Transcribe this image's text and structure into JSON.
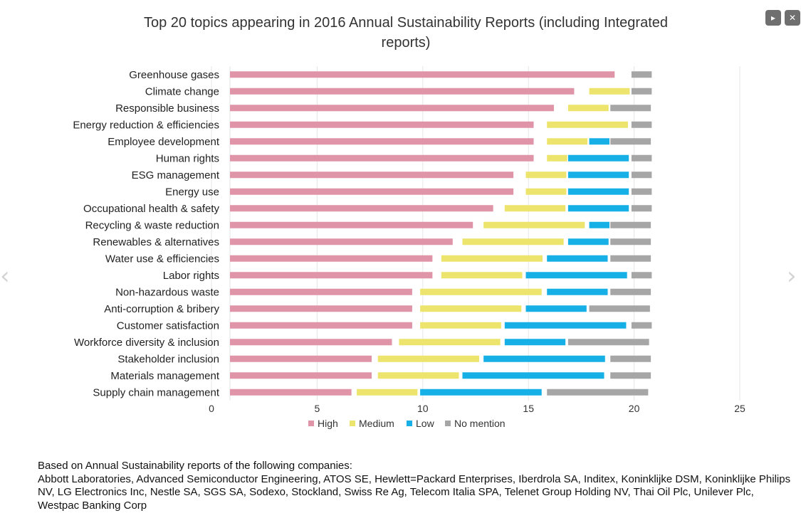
{
  "controls": {
    "play_symbol": "▸",
    "close_symbol": "✕"
  },
  "nav": {
    "prev_symbol": "‹",
    "next_symbol": "›"
  },
  "chart_data": {
    "type": "bar",
    "orientation": "horizontal",
    "stacked": true,
    "title": "Top 20 topics appearing in 2016 Annual Sustainability Reports (including Integrated reports)",
    "xlabel": "",
    "ylabel": "",
    "xlim": [
      0,
      25
    ],
    "xticks": [
      0,
      5,
      10,
      15,
      20,
      25
    ],
    "grid": true,
    "legend_position": "bottom",
    "categories": [
      "Greenhouse gases",
      "Climate change",
      "Responsible business",
      "Energy reduction & efficiencies",
      "Employee development",
      "Human rights",
      "ESG management",
      "Energy use",
      "Occupational health & safety",
      "Recycling & waste reduction",
      "Renewables & alternatives",
      "Water use & efficiencies",
      "Labor rights",
      "Non-hazardous waste",
      "Anti-corruption & bribery",
      "Customer satisfaction",
      "Workforce diversity & inclusion",
      "Stakeholder inclusion",
      "Materials management",
      "Supply chain management"
    ],
    "series": [
      {
        "name": "High",
        "color": "#e094a8",
        "values": [
          19,
          17,
          16,
          15,
          15,
          15,
          14,
          14,
          13,
          12,
          11,
          10,
          10,
          9,
          9,
          9,
          8,
          7,
          7,
          6
        ]
      },
      {
        "name": "Medium",
        "color": "#ece46c",
        "values": [
          0,
          2,
          2,
          4,
          2,
          1,
          2,
          2,
          3,
          5,
          5,
          5,
          4,
          6,
          5,
          4,
          5,
          5,
          4,
          3
        ]
      },
      {
        "name": "Low",
        "color": "#16b0e6",
        "values": [
          0,
          0,
          0,
          0,
          1,
          3,
          3,
          3,
          3,
          1,
          2,
          3,
          5,
          3,
          3,
          6,
          3,
          6,
          7,
          6
        ]
      },
      {
        "name": "No mention",
        "color": "#a6a6a6",
        "values": [
          1,
          1,
          2,
          1,
          2,
          1,
          1,
          1,
          1,
          2,
          2,
          2,
          1,
          2,
          3,
          1,
          4,
          2,
          2,
          5
        ]
      }
    ]
  },
  "footer": {
    "line1": "Based on Annual Sustainability reports of the following companies:",
    "line2": "Abbott Laboratories, Advanced Semiconductor Engineering, ATOS SE, Hewlett=Packard Enterprises, Iberdrola SA, Inditex, Koninklijke DSM, Koninklijke Philips NV, LG Electronics Inc, Nestle SA, SGS SA, Sodexo, Stockland, Swiss Re Ag, Telecom Italia SPA, Telenet Group Holding NV, Thai Oil Plc, Unilever Plc, Westpac Banking Corp"
  }
}
